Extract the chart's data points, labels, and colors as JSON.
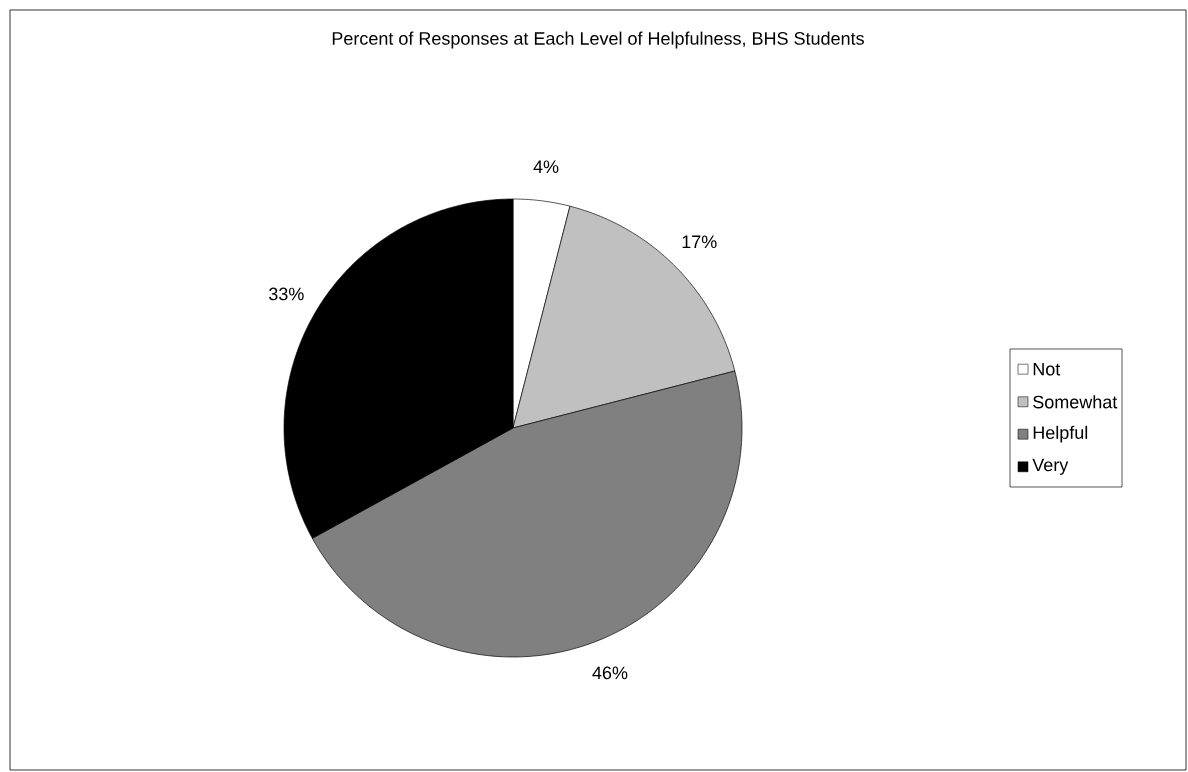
{
  "chart_data": {
    "type": "pie",
    "title": "Percent of Responses at Each Level of Helpfulness, BHS Students",
    "categories": [
      "Not",
      "Somewhat",
      "Helpful",
      "Very"
    ],
    "values": [
      4,
      17,
      46,
      33
    ],
    "colors": [
      "#ffffff",
      "#c0c0c0",
      "#808080",
      "#000000"
    ],
    "data_labels": true,
    "value_labels": [
      "4%",
      "17%",
      "46%",
      "33%"
    ],
    "legend": "right"
  }
}
